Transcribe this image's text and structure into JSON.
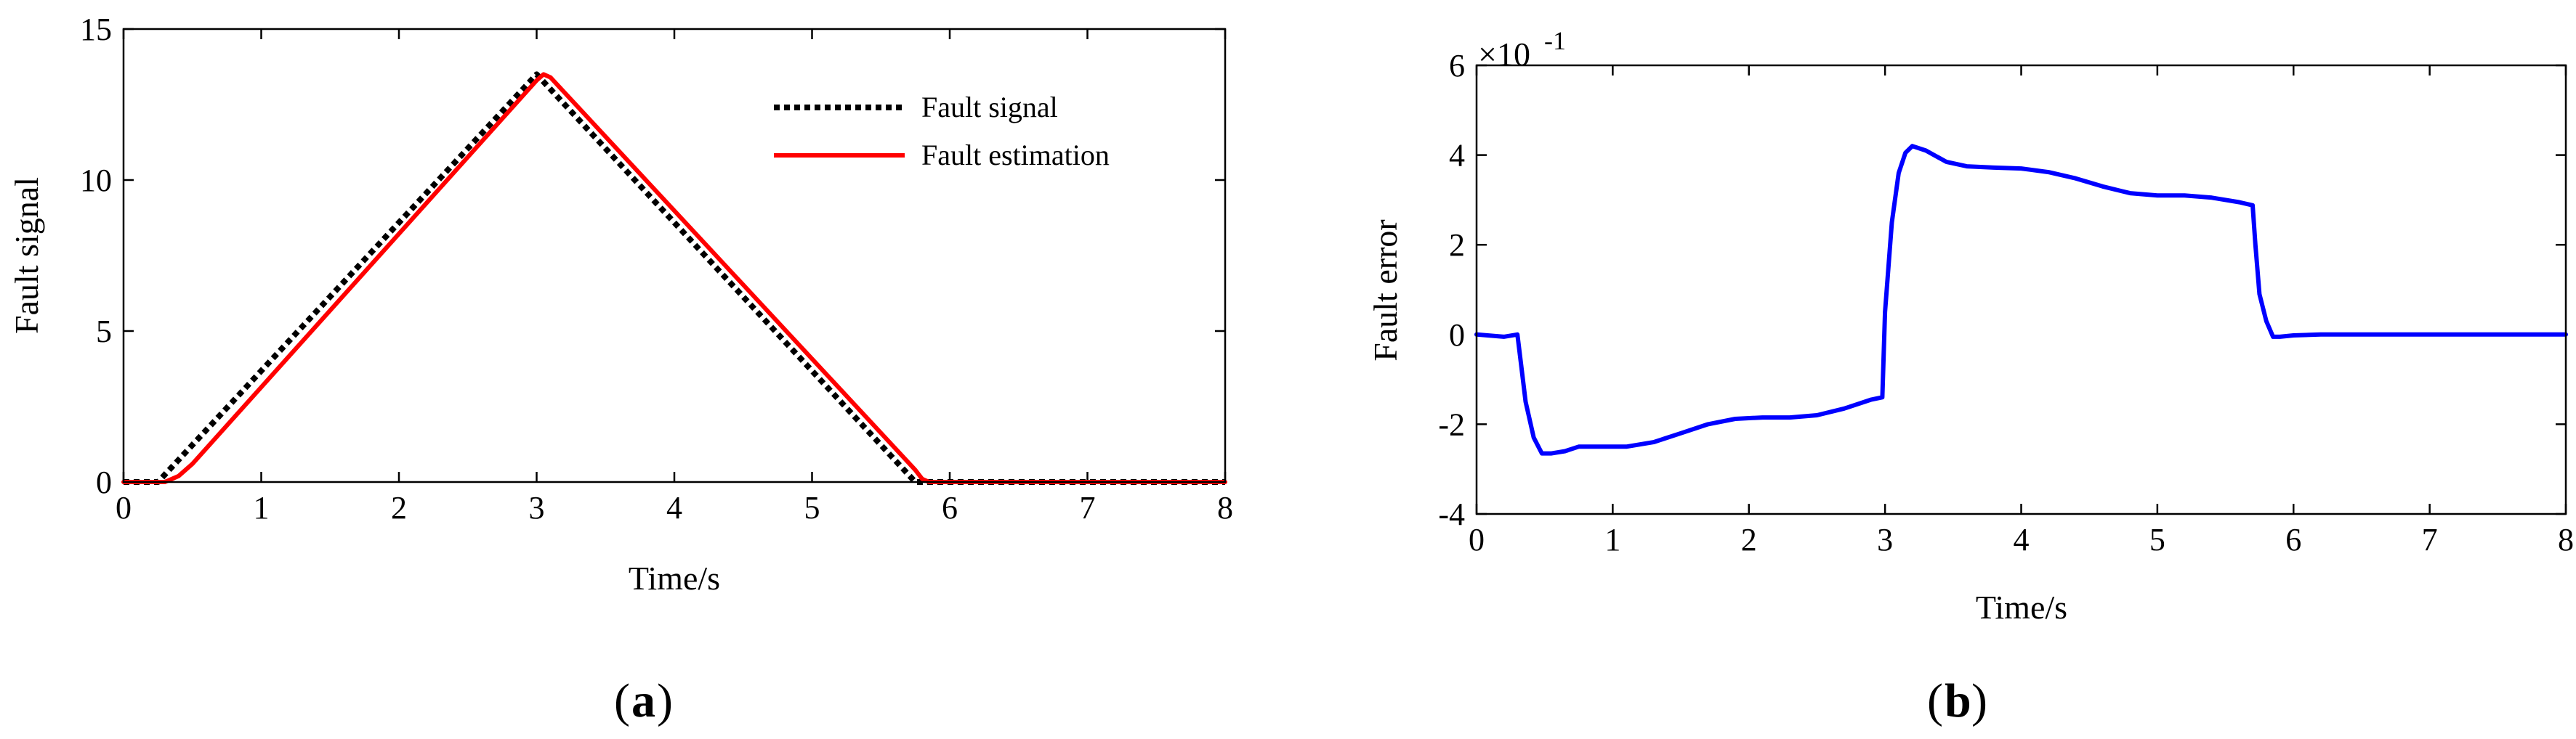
{
  "chart_data": [
    {
      "type": "line",
      "panel": {
        "open": "(",
        "letter": "a",
        "close": ")"
      },
      "xlabel": "Time/s",
      "ylabel": "Fault signal",
      "xlim": [
        0,
        8
      ],
      "ylim": [
        0,
        15
      ],
      "xticks": [
        0,
        1,
        2,
        3,
        4,
        5,
        6,
        7,
        8
      ],
      "yticks": [
        0,
        5,
        10,
        15
      ],
      "grid": false,
      "legend_position": "top-right",
      "series": [
        {
          "name": "Fault signal",
          "color": "#000000",
          "style": "dotted",
          "x": [
            0,
            0.25,
            3.0,
            5.75,
            8
          ],
          "y": [
            0,
            0,
            13.5,
            0,
            0
          ]
        },
        {
          "name": "Fault estimation",
          "color": "#ff0000",
          "style": "solid",
          "x": [
            0,
            0.3,
            0.4,
            0.5,
            3.0,
            3.05,
            3.1,
            5.75,
            5.8,
            5.85,
            8
          ],
          "y": [
            0,
            0,
            0.2,
            0.6,
            13.3,
            13.5,
            13.4,
            0.4,
            0.1,
            0,
            0
          ]
        }
      ]
    },
    {
      "type": "line",
      "panel": {
        "open": "(",
        "letter": "b",
        "close": ")"
      },
      "xlabel": "Time/s",
      "ylabel": "Fault error",
      "scale_note": {
        "base": "×10",
        "exp": "-1"
      },
      "xlim": [
        0,
        8
      ],
      "ylim": [
        -4,
        6
      ],
      "xticks": [
        0,
        1,
        2,
        3,
        4,
        5,
        6,
        7,
        8
      ],
      "yticks": [
        -4,
        -2,
        0,
        2,
        4,
        6
      ],
      "grid": false,
      "series": [
        {
          "color": "#0000ff",
          "style": "solid",
          "x": [
            0,
            0.2,
            0.3,
            0.32,
            0.36,
            0.42,
            0.48,
            0.55,
            0.65,
            0.75,
            0.9,
            1.1,
            1.3,
            1.5,
            1.7,
            1.9,
            2.1,
            2.3,
            2.5,
            2.7,
            2.9,
            2.98,
            3.0,
            3.05,
            3.1,
            3.15,
            3.2,
            3.3,
            3.45,
            3.6,
            3.8,
            4.0,
            4.2,
            4.4,
            4.6,
            4.8,
            5.0,
            5.2,
            5.4,
            5.6,
            5.7,
            5.72,
            5.75,
            5.8,
            5.85,
            5.9,
            6.0,
            6.2,
            7.0,
            8.0
          ],
          "y": [
            0.0,
            -0.05,
            0.0,
            -0.5,
            -1.5,
            -2.3,
            -2.65,
            -2.65,
            -2.6,
            -2.5,
            -2.5,
            -2.5,
            -2.4,
            -2.2,
            -2.0,
            -1.88,
            -1.85,
            -1.85,
            -1.8,
            -1.65,
            -1.45,
            -1.4,
            0.5,
            2.5,
            3.6,
            4.05,
            4.2,
            4.1,
            3.85,
            3.75,
            3.72,
            3.7,
            3.62,
            3.48,
            3.3,
            3.15,
            3.1,
            3.1,
            3.05,
            2.95,
            2.88,
            2.0,
            0.9,
            0.3,
            -0.05,
            -0.05,
            -0.02,
            0.0,
            0.0,
            0.0
          ]
        }
      ]
    }
  ]
}
